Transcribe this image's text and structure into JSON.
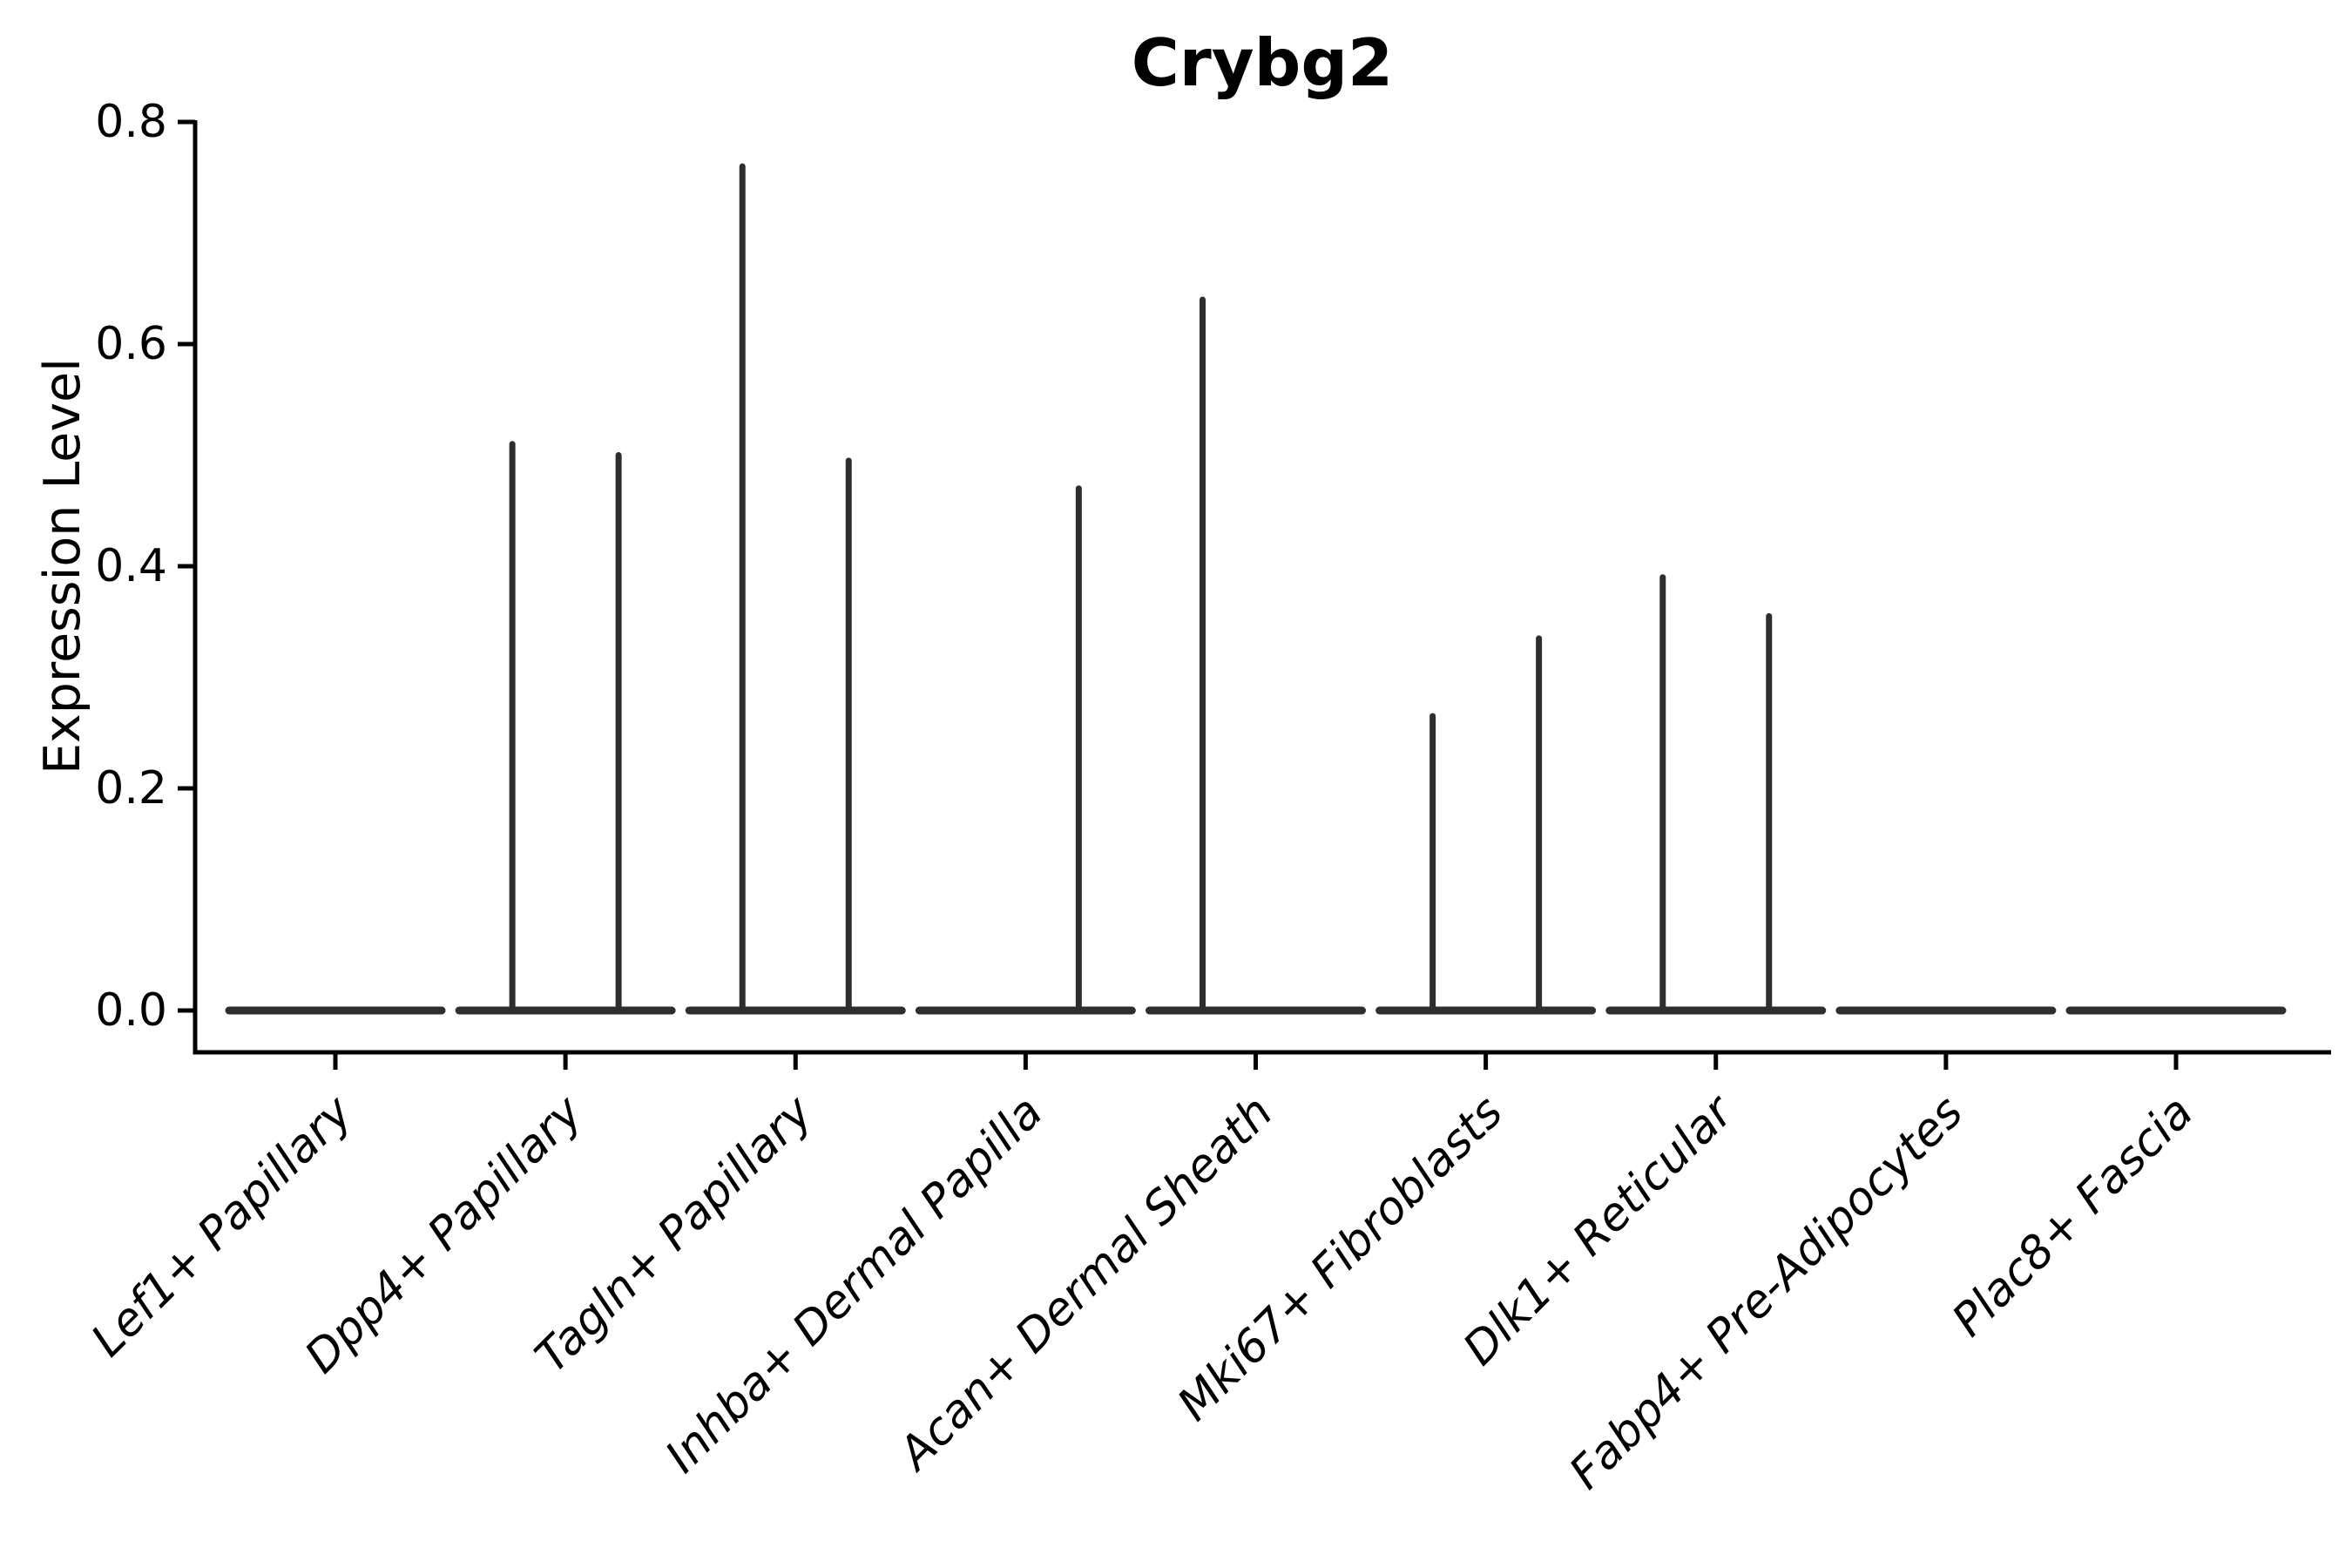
{
  "title": "Crybg2",
  "y_axis": {
    "label": "Expression Level",
    "tick_labels": [
      "0.0",
      "0.2",
      "0.4",
      "0.6",
      "0.8"
    ]
  },
  "chart_data": {
    "type": "violin",
    "title": "Crybg2",
    "ylabel": "Expression Level",
    "xlabel": "",
    "ylim": [
      0,
      0.8
    ],
    "yticks": [
      0.0,
      0.2,
      0.4,
      0.6,
      0.8
    ],
    "grid": false,
    "legend": false,
    "categories": [
      "Lef1+ Papillary",
      "Dpp4+ Papillary",
      "Tagln+ Papillary",
      "Inhba+ Dermal Papilla",
      "Acan+ Dermal Sheath",
      "Mki67+ Fibroblasts",
      "Dlk1+ Reticular",
      "Fabp4+ Pre-Adipocytes",
      "Plac8+ Fascia"
    ],
    "violins_per_category": 2,
    "series": [
      {
        "name": "left-violin",
        "max_values": [
          0,
          0.51,
          0.76,
          0,
          0.64,
          0.265,
          0.39,
          0,
          0
        ]
      },
      {
        "name": "right-violin",
        "max_values": [
          0,
          0.5,
          0.495,
          0.47,
          0,
          0.335,
          0.355,
          0,
          0
        ]
      }
    ]
  },
  "colors": {
    "violin": "#2e2e2e",
    "axis": "#000000",
    "text": "#000000",
    "background": "#ffffff"
  }
}
